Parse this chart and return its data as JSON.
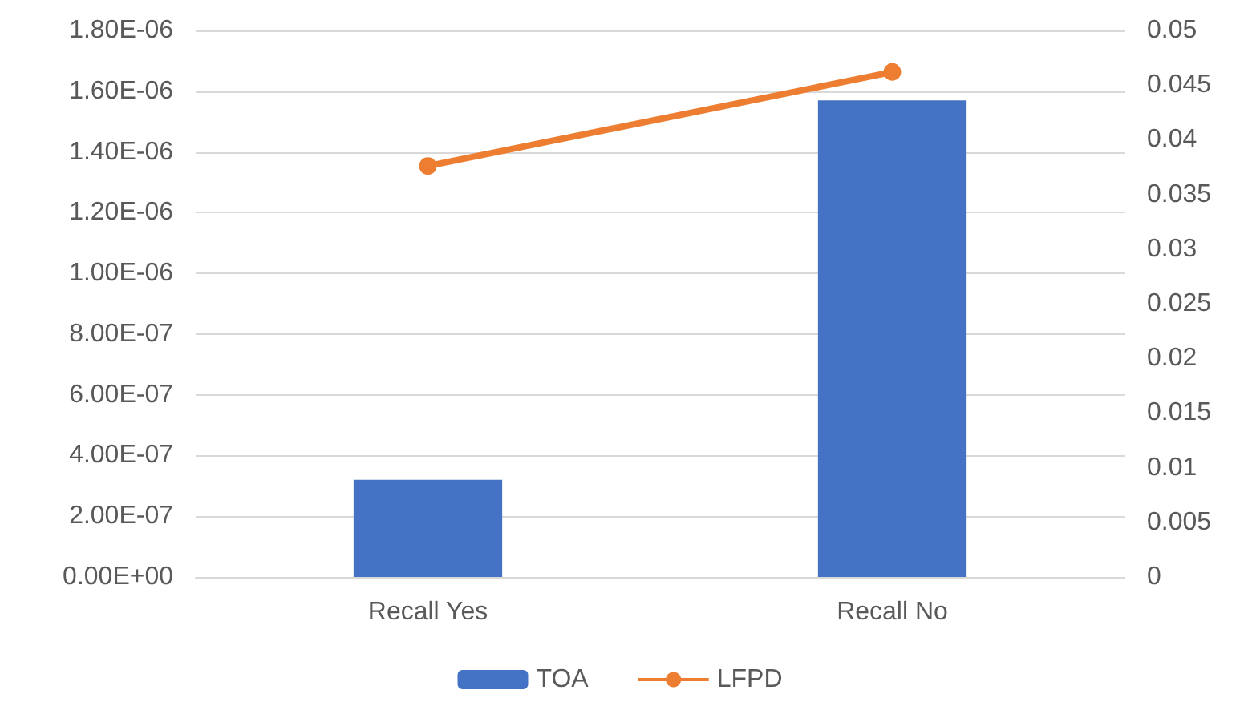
{
  "chart_data": {
    "type": "bar",
    "categories": [
      "Recall Yes",
      "Recall No"
    ],
    "series": [
      {
        "name": "TOA",
        "color": "#4472c4",
        "values": [
          3.2e-07,
          1.57e-06
        ]
      },
      {
        "name": "LFPD",
        "type": "line",
        "axis": "y2",
        "color": "#ed7d31",
        "values": [
          0.0376,
          0.0462
        ]
      }
    ],
    "ylim": [
      0,
      1.8e-06
    ],
    "yticks": [
      {
        "value": 0,
        "label": "0.00E+00"
      },
      {
        "value": 2e-07,
        "label": "2.00E-07"
      },
      {
        "value": 4e-07,
        "label": "4.00E-07"
      },
      {
        "value": 6e-07,
        "label": "6.00E-07"
      },
      {
        "value": 8e-07,
        "label": "8.00E-07"
      },
      {
        "value": 1e-06,
        "label": "1.00E-06"
      },
      {
        "value": 1.2e-06,
        "label": "1.20E-06"
      },
      {
        "value": 1.4e-06,
        "label": "1.40E-06"
      },
      {
        "value": 1.6e-06,
        "label": "1.60E-06"
      },
      {
        "value": 1.8e-06,
        "label": "1.80E-06"
      }
    ],
    "y2lim": [
      0,
      0.05
    ],
    "y2ticks": [
      0,
      0.005,
      0.01,
      0.015,
      0.02,
      0.025,
      0.03,
      0.035,
      0.04,
      0.045,
      0.05
    ],
    "grid": "y",
    "legend": "bottom",
    "marker": "circle",
    "line_style": "solid"
  }
}
